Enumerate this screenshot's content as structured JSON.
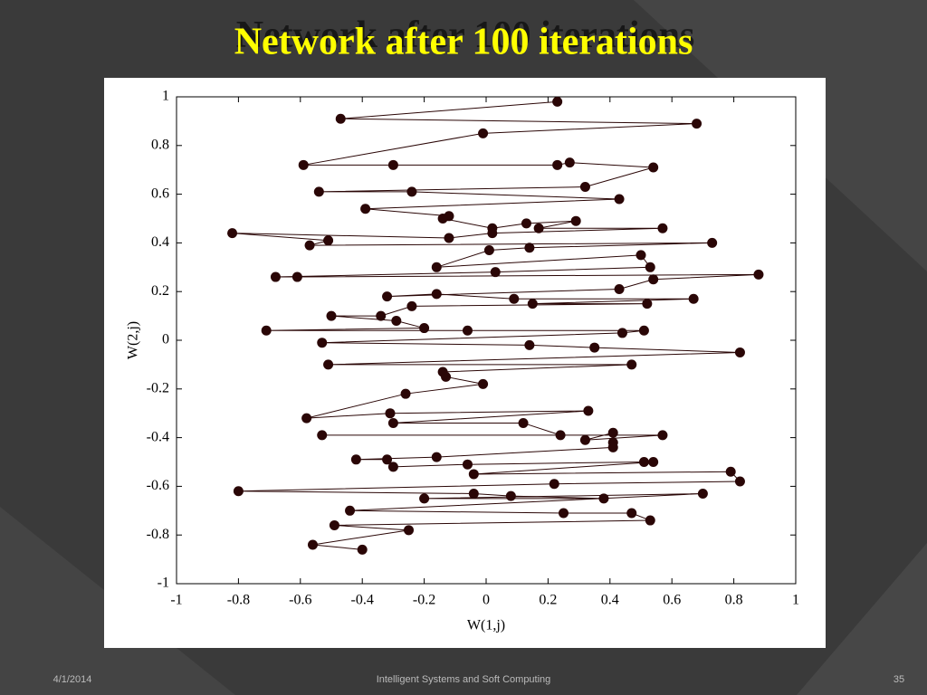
{
  "chart_data": {
    "type": "line",
    "title": "Network after 100 iterations",
    "xlabel": "W(1,j)",
    "ylabel": "W(2,j)",
    "xlim": [
      -1,
      1
    ],
    "ylim": [
      -1,
      1
    ],
    "xticks": [
      -1,
      -0.8,
      -0.6,
      -0.4,
      -0.2,
      0,
      0.2,
      0.4,
      0.6,
      0.8,
      1
    ],
    "yticks": [
      -1,
      -0.8,
      -0.6,
      -0.4,
      -0.2,
      0,
      0.2,
      0.4,
      0.6,
      0.8,
      1
    ],
    "grid": false,
    "marker": "circle",
    "x": [
      0.23,
      -0.47,
      0.68,
      -0.01,
      -0.59,
      -0.3,
      0.23,
      0.27,
      0.54,
      0.32,
      -0.54,
      -0.24,
      0.43,
      -0.39,
      -0.12,
      -0.14,
      0.02,
      0.13,
      0.29,
      0.17,
      0.57,
      0.02,
      -0.12,
      -0.82,
      -0.51,
      -0.57,
      0.73,
      0.14,
      0.01,
      -0.16,
      0.5,
      0.53,
      0.03,
      -0.68,
      -0.61,
      0.88,
      0.54,
      0.43,
      -0.32,
      -0.16,
      0.09,
      0.67,
      0.15,
      0.52,
      -0.24,
      -0.34,
      -0.5,
      -0.29,
      -0.2,
      -0.71,
      -0.06,
      0.51,
      0.44,
      -0.53,
      0.14,
      0.35,
      0.82,
      -0.51,
      0.47,
      -0.14,
      -0.13,
      -0.01,
      -0.26,
      -0.58,
      -0.31,
      0.33,
      -0.3,
      0.12,
      0.24,
      -0.53,
      0.57,
      0.32,
      0.41,
      0.41,
      0.41,
      -0.16,
      -0.42,
      -0.32,
      -0.3,
      -0.06,
      0.51,
      0.54,
      -0.04,
      0.79,
      0.82,
      0.22,
      -0.8,
      -0.04,
      0.08,
      0.38,
      -0.2,
      0.7,
      -0.44,
      0.25,
      0.47,
      0.53,
      -0.49,
      -0.25,
      -0.56,
      -0.4
    ],
    "series": [
      {
        "color": "#2a0606",
        "values": [
          0.98,
          0.91,
          0.89,
          0.85,
          0.72,
          0.72,
          0.72,
          0.73,
          0.71,
          0.63,
          0.61,
          0.61,
          0.58,
          0.54,
          0.51,
          0.5,
          0.46,
          0.48,
          0.49,
          0.46,
          0.46,
          0.44,
          0.42,
          0.44,
          0.41,
          0.39,
          0.4,
          0.38,
          0.37,
          0.3,
          0.35,
          0.3,
          0.28,
          0.26,
          0.26,
          0.27,
          0.25,
          0.21,
          0.18,
          0.19,
          0.17,
          0.17,
          0.15,
          0.15,
          0.14,
          0.1,
          0.1,
          0.08,
          0.05,
          0.04,
          0.04,
          0.04,
          0.03,
          -0.01,
          -0.02,
          -0.03,
          -0.05,
          -0.1,
          -0.1,
          -0.13,
          -0.15,
          -0.18,
          -0.22,
          -0.32,
          -0.3,
          -0.29,
          -0.34,
          -0.34,
          -0.39,
          -0.39,
          -0.39,
          -0.41,
          -0.38,
          -0.42,
          -0.44,
          -0.48,
          -0.49,
          -0.49,
          -0.52,
          -0.51,
          -0.5,
          -0.5,
          -0.55,
          -0.54,
          -0.58,
          -0.59,
          -0.62,
          -0.63,
          -0.64,
          -0.65,
          -0.65,
          -0.63,
          -0.7,
          -0.71,
          -0.71,
          -0.74,
          -0.76,
          -0.78,
          -0.84,
          -0.86
        ]
      }
    ]
  },
  "footer": {
    "date": "4/1/2014",
    "center": "Intelligent Systems and Soft Computing",
    "page": "35"
  }
}
